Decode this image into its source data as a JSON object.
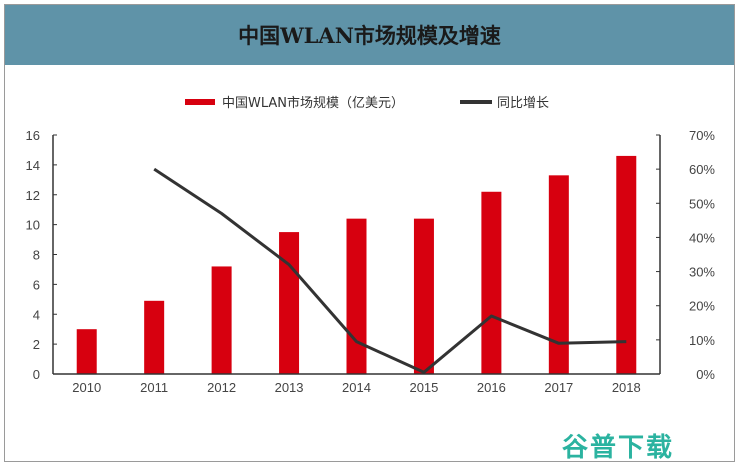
{
  "header": {
    "title": "中国WLAN市场规模及增速"
  },
  "legend": [
    {
      "label": "中国WLAN市场规模（亿美元）",
      "color": "#d7000f",
      "type": "bar"
    },
    {
      "label": "同比增长",
      "color": "#333333",
      "type": "line"
    }
  ],
  "watermark": "谷普下载",
  "chart_data": {
    "type": "bar",
    "title": "中国WLAN市场规模及增速",
    "xlabel": "",
    "ylabel": "",
    "categories": [
      "2010",
      "2011",
      "2012",
      "2013",
      "2014",
      "2015",
      "2016",
      "2017",
      "2018"
    ],
    "series": [
      {
        "name": "中国WLAN市场规模（亿美元）",
        "type": "bar",
        "axis": "left",
        "color": "#d7000f",
        "values": [
          3.0,
          4.9,
          7.2,
          9.5,
          10.4,
          10.4,
          12.2,
          13.3,
          14.6
        ]
      },
      {
        "name": "同比增长",
        "type": "line",
        "axis": "right",
        "color": "#333333",
        "values": [
          null,
          60,
          47,
          32,
          9.5,
          0.5,
          17,
          9,
          9.5
        ]
      }
    ],
    "ylim": [
      0,
      16
    ],
    "y_ticks": [
      "0",
      "2",
      "4",
      "6",
      "8",
      "10",
      "12",
      "14",
      "16"
    ],
    "y2lim": [
      0,
      70
    ],
    "y2_ticks": [
      "0%",
      "10%",
      "20%",
      "30%",
      "40%",
      "50%",
      "60%",
      "70%"
    ],
    "grid": false,
    "legend_position": "top"
  }
}
